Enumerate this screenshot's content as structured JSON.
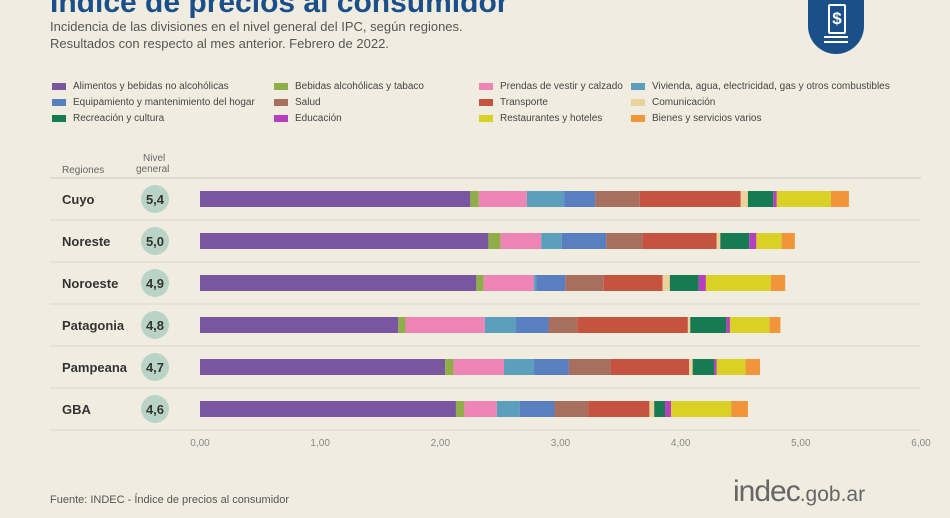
{
  "header": {
    "title": "Índice de precios al consumidor",
    "subtitle_1": "Incidencia de las divisiones en el nivel general del IPC, según regiones.",
    "subtitle_2": "Resultados con respecto al mes anterior. Febrero de 2022.",
    "badge_icon": "dollar-receipt-icon",
    "badge_symbol": "$"
  },
  "footer": {
    "source": "Fuente: INDEC - Índice de precios al consumidor",
    "logo_main": "indec",
    "logo_domain": ".gob.ar"
  },
  "chart_data": {
    "type": "bar",
    "orientation": "horizontal",
    "stacked": true,
    "title": "Índice de precios al consumidor",
    "row_header": "Regiones",
    "level_header_1": "Nivel",
    "level_header_2": "general",
    "xlim": [
      0,
      6
    ],
    "xticks": [
      "0,00",
      "1,00",
      "2,00",
      "3,00",
      "4,00",
      "5,00",
      "6,00"
    ],
    "legend_position": "top",
    "divisions": [
      {
        "name": "Alimentos y bebidas no alcohólicas",
        "color": "#7a56a0"
      },
      {
        "name": "Bebidas alcohólicas y tabaco",
        "color": "#8fae48"
      },
      {
        "name": "Prendas de vestir y calzado",
        "color": "#ee86b5"
      },
      {
        "name": "Vivienda, agua, electricidad, gas y otros combustibles",
        "color": "#5b9fbd"
      },
      {
        "name": "Equipamiento y mantenimiento del hogar",
        "color": "#5a7fc1"
      },
      {
        "name": "Salud",
        "color": "#a86f5e"
      },
      {
        "name": "Transporte",
        "color": "#c65340"
      },
      {
        "name": "Comunicación",
        "color": "#ebd29a"
      },
      {
        "name": "Recreación y cultura",
        "color": "#167a52"
      },
      {
        "name": "Educación",
        "color": "#b53fbf"
      },
      {
        "name": "Restaurantes y hoteles",
        "color": "#d9d126"
      },
      {
        "name": "Bienes y servicios varios",
        "color": "#f1953b"
      }
    ],
    "regions": [
      {
        "name": "Cuyo",
        "level": "5,4",
        "values": [
          2.25,
          0.07,
          0.4,
          0.31,
          0.26,
          0.37,
          0.84,
          0.06,
          0.21,
          0.03,
          0.45,
          0.15
        ]
      },
      {
        "name": "Noreste",
        "level": "5,0",
        "values": [
          2.4,
          0.1,
          0.34,
          0.17,
          0.37,
          0.3,
          0.62,
          0.03,
          0.24,
          0.06,
          0.21,
          0.11
        ]
      },
      {
        "name": "Noroeste",
        "level": "4,9",
        "values": [
          2.3,
          0.06,
          0.42,
          0.02,
          0.24,
          0.32,
          0.49,
          0.06,
          0.24,
          0.06,
          0.54,
          0.12
        ]
      },
      {
        "name": "Patagonia",
        "level": "4,8",
        "values": [
          1.65,
          0.06,
          0.66,
          0.26,
          0.27,
          0.24,
          0.92,
          0.02,
          0.3,
          0.03,
          0.33,
          0.09
        ]
      },
      {
        "name": "Pampeana",
        "level": "4,7",
        "values": [
          2.04,
          0.07,
          0.42,
          0.25,
          0.29,
          0.35,
          0.65,
          0.03,
          0.18,
          0.02,
          0.24,
          0.12
        ]
      },
      {
        "name": "GBA",
        "level": "4,6",
        "values": [
          2.13,
          0.07,
          0.27,
          0.19,
          0.29,
          0.28,
          0.51,
          0.04,
          0.09,
          0.05,
          0.5,
          0.14
        ]
      }
    ]
  }
}
